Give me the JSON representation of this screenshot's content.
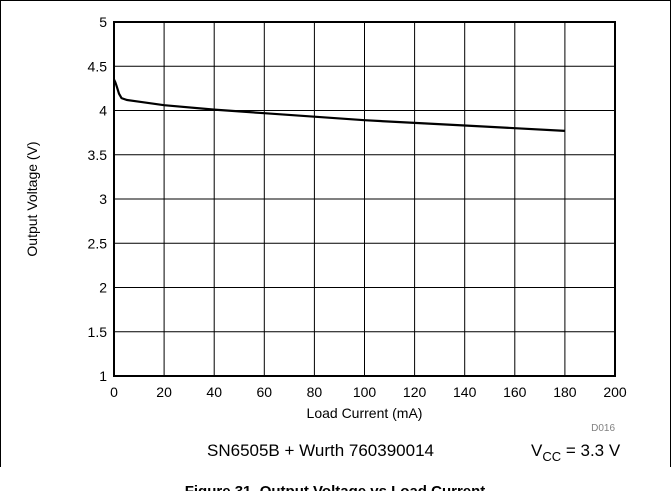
{
  "chart_data": {
    "type": "line",
    "xlabel": "Load Current (mA)",
    "ylabel": "Output Voltage (V)",
    "xlim": [
      0,
      200
    ],
    "ylim": [
      1,
      5
    ],
    "x_ticks": [
      "0",
      "20",
      "40",
      "60",
      "80",
      "100",
      "120",
      "140",
      "160",
      "180",
      "200"
    ],
    "y_ticks": [
      "1",
      "1.5",
      "2",
      "2.5",
      "3",
      "3.5",
      "4",
      "4.5",
      "5"
    ],
    "grid": true,
    "series": [
      {
        "x": [
          0,
          0.5,
          1,
          2,
          3,
          5,
          10,
          20,
          40,
          60,
          80,
          100,
          120,
          140,
          160,
          180
        ],
        "y": [
          4.35,
          4.32,
          4.28,
          4.19,
          4.14,
          4.12,
          4.1,
          4.06,
          4.01,
          3.97,
          3.93,
          3.89,
          3.86,
          3.83,
          3.8,
          3.77
        ]
      }
    ]
  },
  "footer": {
    "device": "SN6505B + Wurth 760390014",
    "vcc_prefix": "V",
    "vcc_sub": "CC",
    "vcc_suffix": " = 3.3 V",
    "doc_id": "D016"
  },
  "caption": "Figure 31. Output Voltage vs Load Current"
}
